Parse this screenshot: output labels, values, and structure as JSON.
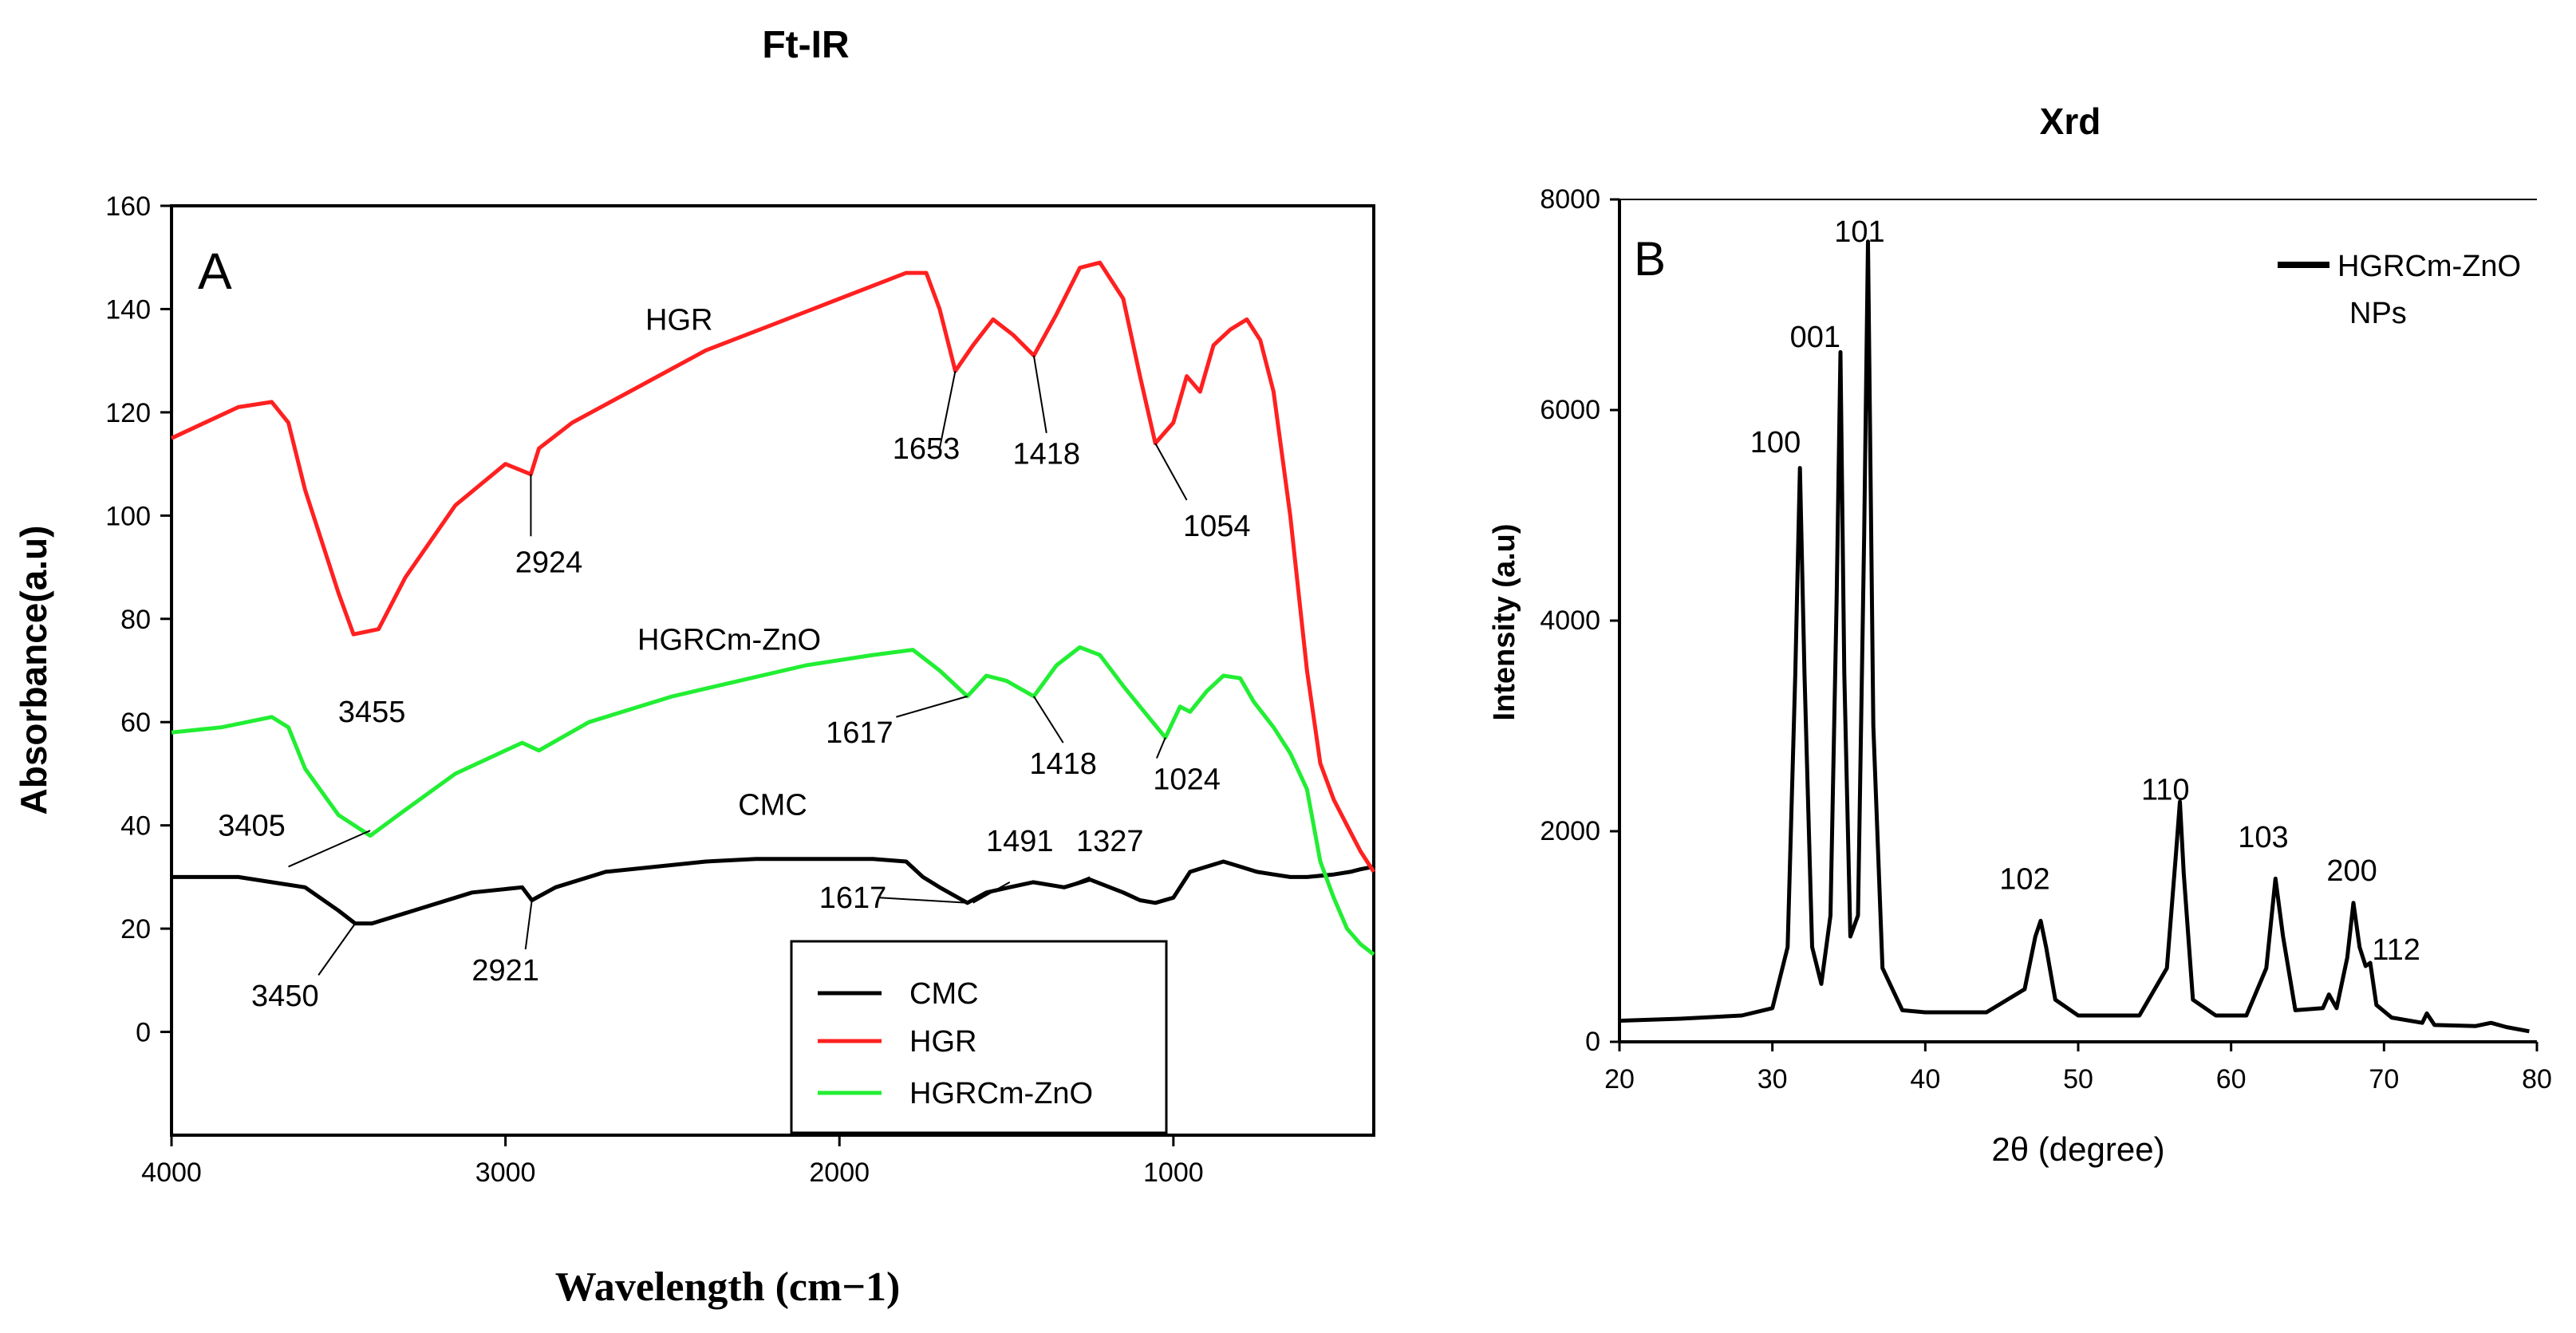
{
  "chart_data": [
    {
      "type": "line",
      "title": "Ft-IR",
      "panel_label": "A",
      "xlabel": "Wavelength (cm−1)",
      "ylabel": "Absorbance(a.u)",
      "xlim": [
        4000,
        400
      ],
      "ylim": [
        -20,
        160
      ],
      "xticks": [
        4000,
        3000,
        2000,
        1000
      ],
      "yticks": [
        0,
        20,
        40,
        60,
        80,
        100,
        120,
        140,
        160
      ],
      "legend_position": "bottom-right",
      "series": [
        {
          "name": "CMC",
          "color": "#000000",
          "x": [
            4000,
            3800,
            3700,
            3600,
            3500,
            3450,
            3400,
            3300,
            3100,
            2950,
            2921,
            2850,
            2700,
            2400,
            2250,
            2100,
            1900,
            1800,
            1750,
            1700,
            1617,
            1560,
            1491,
            1420,
            1327,
            1250,
            1150,
            1100,
            1054,
            1000,
            950,
            900,
            850,
            800,
            750,
            700,
            650,
            600,
            520,
            470,
            440,
            400
          ],
          "y": [
            30,
            30,
            29,
            28,
            23.5,
            21,
            21,
            23,
            27,
            28,
            25.5,
            28,
            31,
            33,
            33.5,
            33.5,
            33.5,
            33,
            30,
            28,
            25,
            27,
            28,
            29,
            28,
            29.5,
            27,
            25.5,
            25,
            26,
            31,
            32,
            33,
            32,
            31,
            30.5,
            30,
            30,
            30.5,
            31,
            31.5,
            32
          ]
        },
        {
          "name": "HGR",
          "color": "#ff2020",
          "x": [
            4000,
            3900,
            3800,
            3700,
            3650,
            3600,
            3500,
            3455,
            3380,
            3300,
            3150,
            3000,
            2924,
            2900,
            2800,
            2600,
            2400,
            2200,
            2000,
            1800,
            1740,
            1700,
            1653,
            1600,
            1540,
            1480,
            1418,
            1350,
            1280,
            1220,
            1150,
            1100,
            1054,
            1000,
            960,
            920,
            880,
            830,
            780,
            740,
            700,
            650,
            600,
            560,
            520,
            480,
            440,
            400
          ],
          "y": [
            115,
            118,
            121,
            122,
            118,
            105,
            85,
            77,
            78,
            88,
            102,
            110,
            108,
            113,
            118,
            125,
            132,
            137,
            142,
            147,
            147,
            140,
            128,
            133,
            138,
            135,
            131,
            139,
            148,
            149,
            142,
            127,
            114,
            118,
            127,
            124,
            133,
            136,
            138,
            134,
            124,
            100,
            70,
            52,
            45,
            40,
            35,
            31
          ]
        },
        {
          "name": "HGRCm-ZnO",
          "color": "#22ee33",
          "x": [
            4000,
            3850,
            3700,
            3650,
            3600,
            3500,
            3405,
            3300,
            3150,
            2950,
            2900,
            2750,
            2500,
            2300,
            2100,
            1900,
            1780,
            1700,
            1617,
            1560,
            1500,
            1418,
            1350,
            1280,
            1220,
            1150,
            1100,
            1024,
            980,
            950,
            900,
            850,
            800,
            760,
            700,
            650,
            600,
            560,
            520,
            480,
            440,
            400
          ],
          "y": [
            58,
            59,
            61,
            59,
            51,
            42,
            38,
            43,
            50,
            56,
            54.5,
            60,
            65,
            68,
            71,
            73,
            74,
            70,
            65,
            69,
            68,
            65,
            71,
            74.5,
            73,
            67,
            63,
            57,
            63,
            62,
            66,
            69,
            68.5,
            64,
            59,
            54,
            47,
            33,
            26,
            20,
            17,
            15
          ]
        }
      ],
      "annotations": [
        {
          "text": "HGR",
          "x": 2480,
          "y": 136
        },
        {
          "text": "HGRCm-ZnO",
          "x": 2330,
          "y": 74
        },
        {
          "text": "CMC",
          "x": 2200,
          "y": 42
        },
        {
          "text": "1653",
          "x": 1740,
          "y": 111
        },
        {
          "text": "1418",
          "x": 1380,
          "y": 110
        },
        {
          "text": "2924",
          "x": 2870,
          "y": 89
        },
        {
          "text": "1054",
          "x": 870,
          "y": 96
        },
        {
          "text": "3455",
          "x": 3400,
          "y": 60
        },
        {
          "text": "1617",
          "x": 1940,
          "y": 56
        },
        {
          "text": "1418",
          "x": 1330,
          "y": 50
        },
        {
          "text": "1024",
          "x": 960,
          "y": 47
        },
        {
          "text": "3405",
          "x": 3760,
          "y": 38
        },
        {
          "text": "1491",
          "x": 1460,
          "y": 35
        },
        {
          "text": "1327",
          "x": 1190,
          "y": 35
        },
        {
          "text": "1617",
          "x": 1960,
          "y": 24
        },
        {
          "text": "3450",
          "x": 3660,
          "y": 5
        },
        {
          "text": "2921",
          "x": 3000,
          "y": 10
        }
      ]
    },
    {
      "type": "line",
      "title": "Xrd",
      "panel_label": "B",
      "xlabel": "2θ (degree)",
      "ylabel": "Intensity (a.u)",
      "xlim": [
        20,
        80
      ],
      "ylim": [
        0,
        8000
      ],
      "xticks": [
        20,
        30,
        40,
        50,
        60,
        70,
        80
      ],
      "yticks": [
        0,
        2000,
        4000,
        6000,
        8000
      ],
      "legend_position": "top-right",
      "series": [
        {
          "name": "HGRCm-ZnO NPs",
          "color": "#000000",
          "x": [
            20,
            24,
            28,
            30,
            31,
            31.5,
            31.8,
            32.1,
            32.6,
            33.2,
            33.8,
            34.2,
            34.45,
            34.7,
            35.1,
            35.6,
            36.0,
            36.25,
            36.6,
            37.2,
            38.5,
            40,
            44,
            46.5,
            47.2,
            47.55,
            47.9,
            48.5,
            50,
            54,
            55.8,
            56.4,
            56.65,
            56.9,
            57.5,
            59,
            61,
            62.3,
            62.9,
            63.4,
            64.2,
            66,
            66.4,
            66.9,
            67.6,
            68.0,
            68.4,
            68.8,
            69.1,
            69.5,
            70.5,
            72.5,
            72.8,
            73.3,
            76,
            77,
            78,
            79.5
          ],
          "y": [
            200,
            220,
            250,
            320,
            900,
            3500,
            5450,
            3500,
            900,
            550,
            1200,
            4200,
            6550,
            3500,
            1000,
            1200,
            4800,
            7600,
            3000,
            700,
            300,
            280,
            280,
            500,
            1000,
            1150,
            900,
            400,
            250,
            250,
            700,
            1800,
            2280,
            1600,
            400,
            250,
            250,
            700,
            1550,
            1000,
            300,
            320,
            450,
            320,
            800,
            1320,
            900,
            720,
            750,
            350,
            230,
            180,
            270,
            160,
            150,
            180,
            140,
            100
          ]
        }
      ],
      "annotations": [
        {
          "text": "100",
          "x": 30.2,
          "y": 5600
        },
        {
          "text": "001",
          "x": 32.8,
          "y": 6600
        },
        {
          "text": "101",
          "x": 35.7,
          "y": 7600
        },
        {
          "text": "102",
          "x": 46.5,
          "y": 1450
        },
        {
          "text": "110",
          "x": 55.7,
          "y": 2300
        },
        {
          "text": "103",
          "x": 62.1,
          "y": 1850
        },
        {
          "text": "200",
          "x": 67.9,
          "y": 1530
        },
        {
          "text": "112",
          "x": 70.8,
          "y": 780
        }
      ]
    }
  ]
}
